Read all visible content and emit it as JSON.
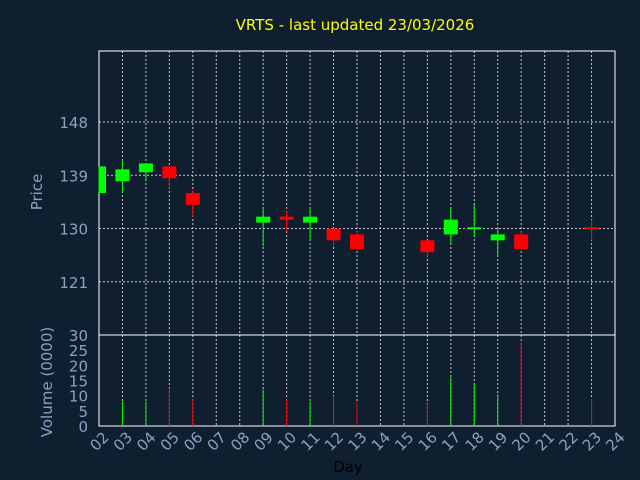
{
  "chart_data": {
    "type": "candlestick",
    "title": "VRTS - last updated 23/03/2026",
    "xlabel": "Day",
    "price_ylabel": "Price",
    "volume_ylabel": "Volume (0000)",
    "x_ticks": [
      "02",
      "03",
      "04",
      "05",
      "06",
      "07",
      "08",
      "09",
      "10",
      "11",
      "12",
      "13",
      "14",
      "15",
      "16",
      "17",
      "18",
      "19",
      "20",
      "21",
      "22",
      "23",
      "24"
    ],
    "price_ticks": [
      121,
      130,
      139,
      148
    ],
    "price_ylim": [
      112,
      160
    ],
    "volume_ticks": [
      0,
      5,
      10,
      15,
      20,
      25,
      30
    ],
    "volume_ylim": [
      0,
      30
    ],
    "grid": true,
    "colors": {
      "background": "#0f1f30",
      "title": "#ffff00",
      "label": "#8aa2c0",
      "up": "#00ff00",
      "down": "#ff0000",
      "grid": "#c8c8c8"
    },
    "candles": [
      {
        "day": "02",
        "open": 136.0,
        "high": 140.5,
        "low": 136.0,
        "close": 140.5
      },
      {
        "day": "03",
        "open": 138.0,
        "high": 141.5,
        "low": 136.0,
        "close": 140.0
      },
      {
        "day": "04",
        "open": 139.5,
        "high": 141.0,
        "low": 138.0,
        "close": 141.0
      },
      {
        "day": "05",
        "open": 140.5,
        "high": 140.5,
        "low": 136.5,
        "close": 138.5
      },
      {
        "day": "06",
        "open": 136.0,
        "high": 136.5,
        "low": 132.0,
        "close": 134.0
      },
      {
        "day": "09",
        "open": 131.0,
        "high": 133.5,
        "low": 127.0,
        "close": 132.0
      },
      {
        "day": "10",
        "open": 132.0,
        "high": 133.0,
        "low": 129.5,
        "close": 131.5
      },
      {
        "day": "11",
        "open": 131.0,
        "high": 133.5,
        "low": 128.0,
        "close": 132.0
      },
      {
        "day": "12",
        "open": 130.0,
        "high": 130.0,
        "low": 127.0,
        "close": 128.0
      },
      {
        "day": "13",
        "open": 129.0,
        "high": 129.5,
        "low": 126.5,
        "close": 126.5
      },
      {
        "day": "16",
        "open": 128.0,
        "high": 128.0,
        "low": 125.0,
        "close": 126.0
      },
      {
        "day": "17",
        "open": 129.0,
        "high": 133.5,
        "low": 127.5,
        "close": 131.5
      },
      {
        "day": "18",
        "open": 130.0,
        "high": 134.0,
        "low": 128.5,
        "close": 130.2
      },
      {
        "day": "19",
        "open": 128.0,
        "high": 130.0,
        "low": 125.5,
        "close": 129.0
      },
      {
        "day": "20",
        "open": 129.0,
        "high": 129.5,
        "low": 126.5,
        "close": 126.5
      },
      {
        "day": "23",
        "open": 130.2,
        "high": 131.5,
        "low": 128.0,
        "close": 130.0
      }
    ],
    "volume": [
      {
        "day": "03",
        "value": 8,
        "dir": "up"
      },
      {
        "day": "04",
        "value": 8,
        "dir": "up"
      },
      {
        "day": "05",
        "value": 12.5,
        "dir": "down"
      },
      {
        "day": "06",
        "value": 9,
        "dir": "down"
      },
      {
        "day": "09",
        "value": 12,
        "dir": "up"
      },
      {
        "day": "10",
        "value": 9,
        "dir": "down"
      },
      {
        "day": "11",
        "value": 8,
        "dir": "up"
      },
      {
        "day": "12",
        "value": 10,
        "dir": "down"
      },
      {
        "day": "13",
        "value": 8,
        "dir": "down"
      },
      {
        "day": "16",
        "value": 8,
        "dir": "down"
      },
      {
        "day": "17",
        "value": 16,
        "dir": "up"
      },
      {
        "day": "18",
        "value": 14,
        "dir": "up"
      },
      {
        "day": "19",
        "value": 10.5,
        "dir": "up"
      },
      {
        "day": "20",
        "value": 27.5,
        "dir": "down"
      },
      {
        "day": "23",
        "value": 9,
        "dir": "down"
      }
    ]
  }
}
